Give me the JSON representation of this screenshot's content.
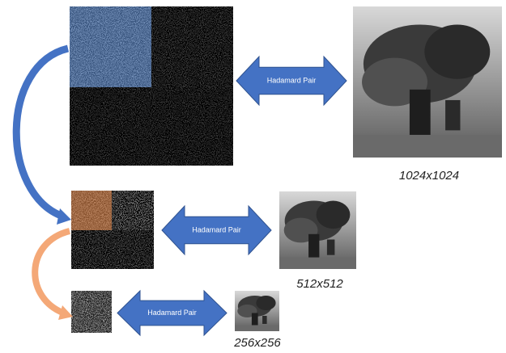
{
  "arrows": [
    {
      "label": "Hadamard Pair"
    },
    {
      "label": "Hadamard Pair"
    },
    {
      "label": "Hadamard Pair"
    }
  ],
  "images": [
    {
      "label": "1024x1024"
    },
    {
      "label": "512x512"
    },
    {
      "label": "256x256"
    }
  ]
}
